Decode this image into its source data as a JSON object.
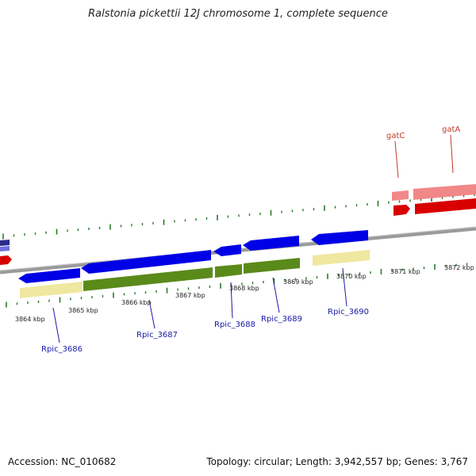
{
  "title": "Ralstonia pickettii 12J chromosome 1, complete sequence",
  "accession": "Accession: NC_010682",
  "summary": "Topology: circular; Length: 3,942,557 bp; Genes: 3,767",
  "colors": {
    "forward_cds": "#d80000",
    "forward_gene": "#f08888",
    "reverse_cds": "#0000e6",
    "reverse_gene": "#1a1aa6",
    "reverse_annotation": "#5a8a1a",
    "reverse_annotation_alt": "#f0e7a0",
    "backbone": "#8a8a8a",
    "ticks": "#2a7a2a"
  },
  "scale_labels": [
    "3864 kbp",
    "3865 kbp",
    "3866 kbp",
    "3867 kbp",
    "3868 kbp",
    "3869 kbp",
    "3870 kbp",
    "3871 kbp",
    "3872 kbp"
  ],
  "reverse_genes": [
    "Rpic_3686",
    "Rpic_3687",
    "Rpic_3688",
    "Rpic_3689",
    "Rpic_3690"
  ],
  "forward_genes": [
    "gatC",
    "gatA"
  ]
}
